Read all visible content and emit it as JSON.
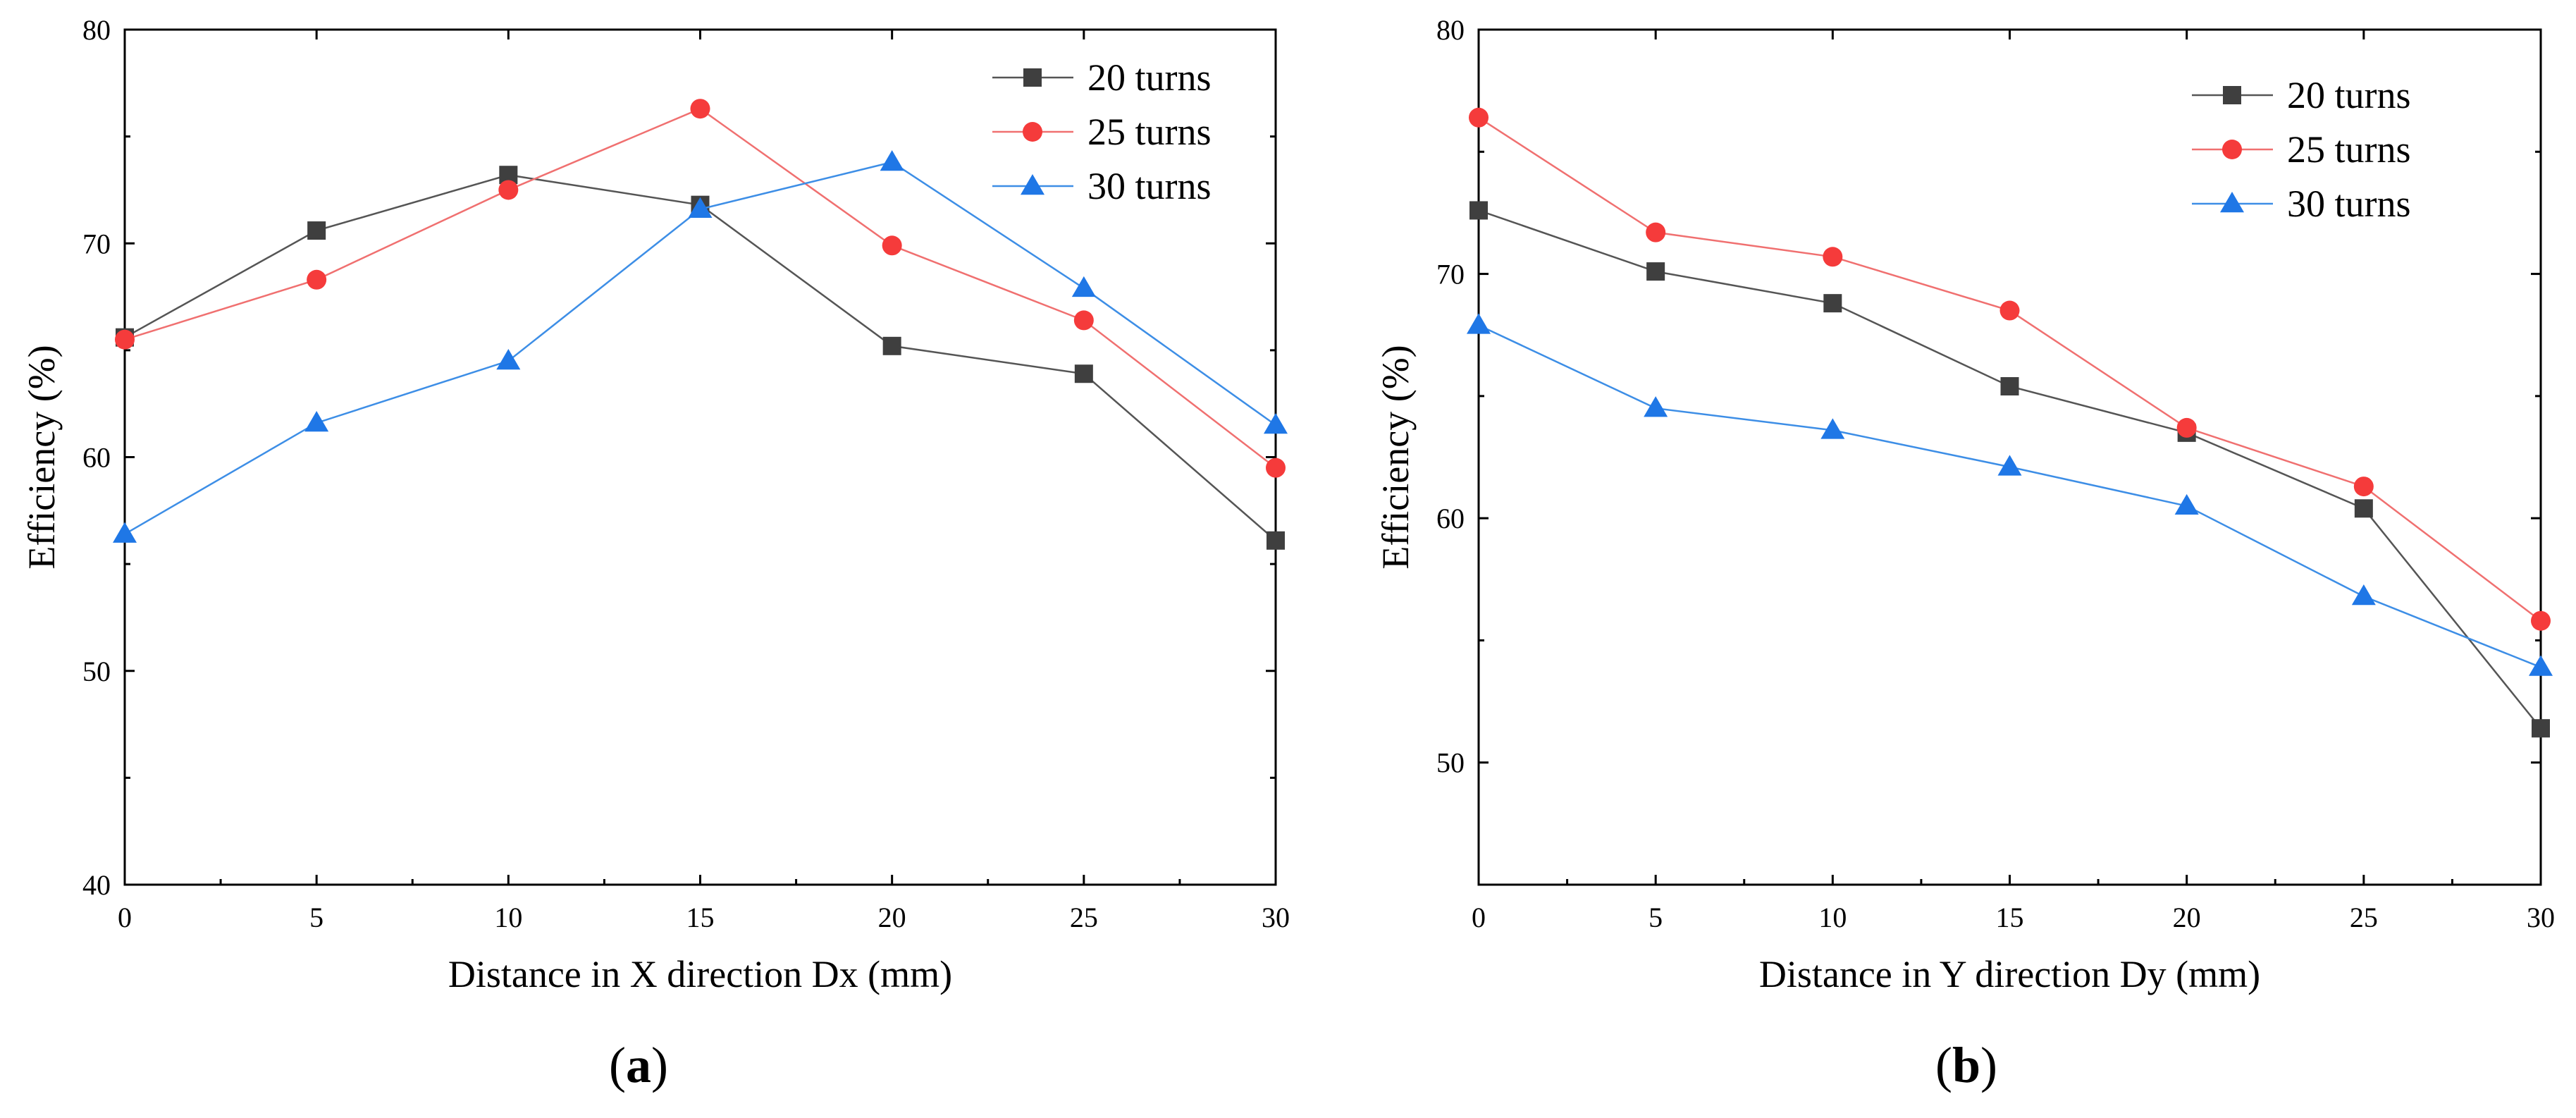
{
  "chart_data": [
    {
      "type": "line",
      "panel": "a",
      "panel_label": "a",
      "xlabel": "Distance in X direction Dx (mm)",
      "ylabel": "Efficiency (%)",
      "xlim": [
        0,
        30
      ],
      "ylim": [
        40,
        80
      ],
      "xticks": [
        0,
        5,
        10,
        15,
        20,
        25,
        30
      ],
      "yticks": [
        40,
        50,
        60,
        70,
        80
      ],
      "legend_position": "top-right",
      "x": [
        0,
        5,
        10,
        15,
        20,
        25,
        30
      ],
      "series": [
        {
          "name": "20 turns",
          "marker": "square",
          "color": "#3f3f3f",
          "line_color": "#555555",
          "values": [
            65.6,
            70.6,
            73.2,
            71.8,
            65.2,
            63.9,
            56.1
          ]
        },
        {
          "name": "25 turns",
          "marker": "circle",
          "color": "#f53b3b",
          "line_color": "#f07070",
          "values": [
            65.5,
            68.3,
            72.5,
            76.3,
            69.9,
            66.4,
            59.5
          ]
        },
        {
          "name": "30 turns",
          "marker": "triangle",
          "color": "#1f77e6",
          "line_color": "#3d8ee6",
          "values": [
            56.4,
            61.6,
            64.5,
            71.6,
            73.8,
            67.9,
            61.5
          ]
        }
      ]
    },
    {
      "type": "line",
      "panel": "b",
      "panel_label": "b",
      "xlabel": "Distance in Y direction Dy (mm)",
      "ylabel": "Efficiency (%)",
      "xlim": [
        0,
        30
      ],
      "ylim": [
        45,
        80
      ],
      "xticks": [
        0,
        5,
        10,
        15,
        20,
        25,
        30
      ],
      "yticks": [
        50,
        60,
        70,
        80
      ],
      "legend_position": "top-right",
      "x": [
        0,
        5,
        10,
        15,
        20,
        25,
        30
      ],
      "series": [
        {
          "name": "20 turns",
          "marker": "square",
          "color": "#3f3f3f",
          "line_color": "#555555",
          "values": [
            72.6,
            70.1,
            68.8,
            65.4,
            63.5,
            60.4,
            51.4
          ]
        },
        {
          "name": "25 turns",
          "marker": "circle",
          "color": "#f53b3b",
          "line_color": "#f07070",
          "values": [
            76.4,
            71.7,
            70.7,
            68.5,
            63.7,
            61.3,
            55.8
          ]
        },
        {
          "name": "30 turns",
          "marker": "triangle",
          "color": "#1f77e6",
          "line_color": "#3d8ee6",
          "values": [
            67.9,
            64.5,
            63.6,
            62.1,
            60.5,
            56.8,
            53.9
          ]
        }
      ]
    }
  ]
}
